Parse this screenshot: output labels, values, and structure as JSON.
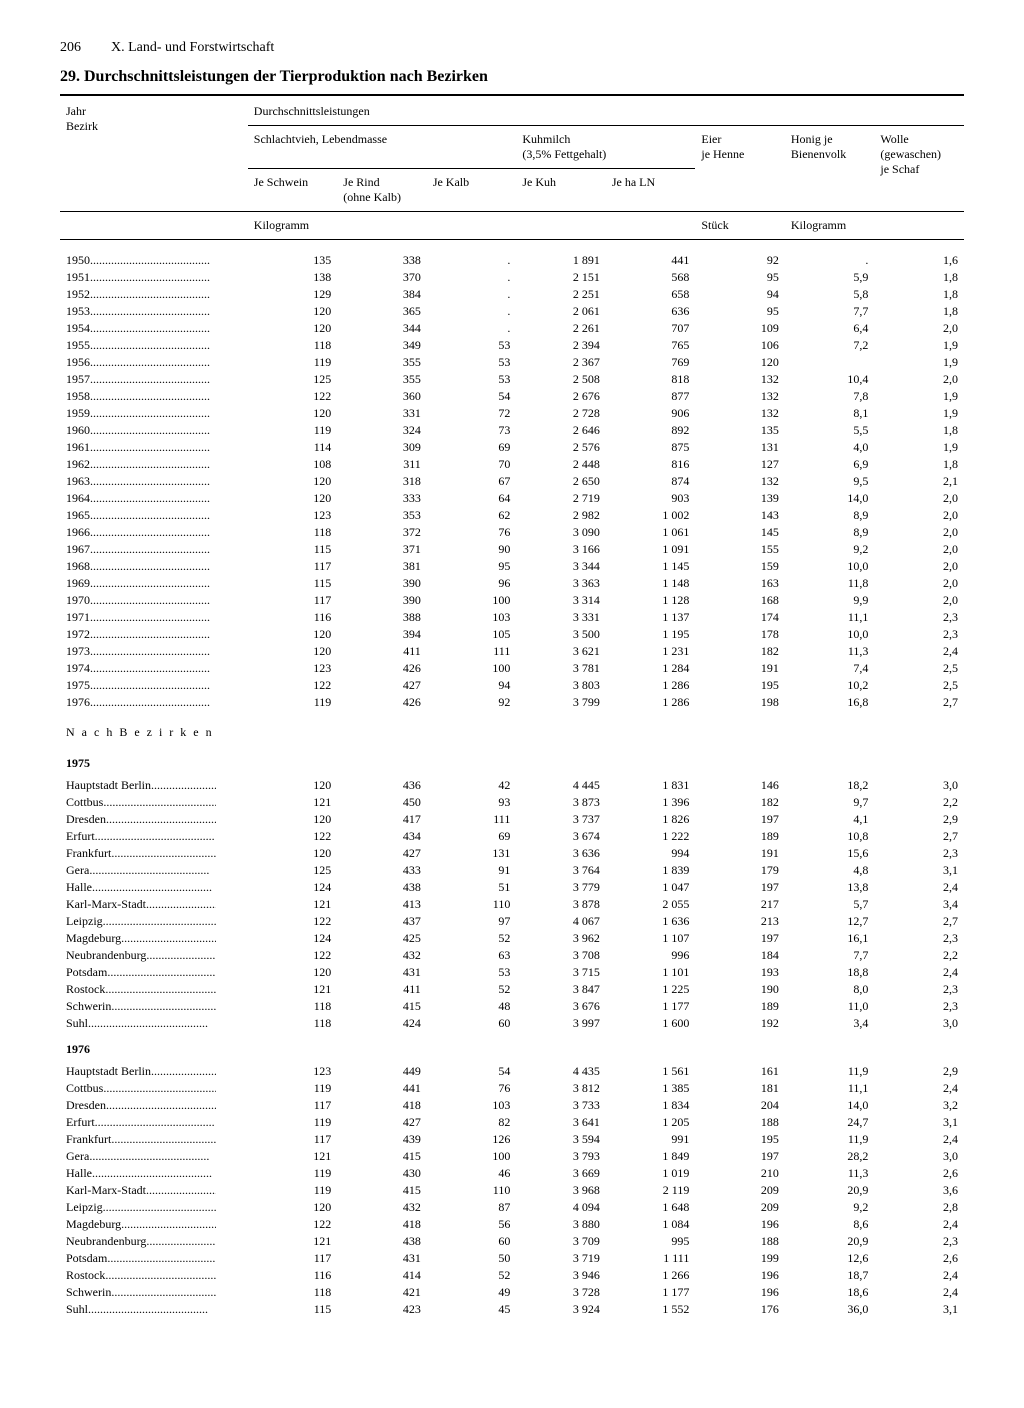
{
  "page_number": "206",
  "chapter": "X. Land- und Forstwirtschaft",
  "title": "29. Durchschnittsleistungen der Tierproduktion nach Bezirken",
  "head": {
    "group_left": "Jahr\nBezirk",
    "group_main": "Durchschnittsleistungen",
    "schlacht": "Schlachtvieh, Lebendmasse",
    "kuhmilch": "Kuhmilch\n(3,5% Fettgehalt)",
    "eier": "Eier\nje Henne",
    "honig": "Honig je\nBienenvolk",
    "wolle": "Wolle\n(gewaschen)\nje Schaf",
    "je_schwein": "Je Schwein",
    "je_rind": "Je Rind\n(ohne Kalb)",
    "je_kalb": "Je Kalb",
    "je_kuh": "Je Kuh",
    "je_ha": "Je ha LN",
    "unit_kg": "Kilogramm",
    "unit_stk": "Stück",
    "unit_kg2": "Kilogramm"
  },
  "section_label": "Nach Bezirken",
  "years": [
    [
      "1950",
      "135",
      "338",
      ".",
      "1 891",
      "441",
      "92",
      ".",
      "1,6"
    ],
    [
      "1951",
      "138",
      "370",
      ".",
      "2 151",
      "568",
      "95",
      "5,9",
      "1,8"
    ],
    [
      "1952",
      "129",
      "384",
      ".",
      "2 251",
      "658",
      "94",
      "5,8",
      "1,8"
    ],
    [
      "1953",
      "120",
      "365",
      ".",
      "2 061",
      "636",
      "95",
      "7,7",
      "1,8"
    ],
    [
      "1954",
      "120",
      "344",
      ".",
      "2 261",
      "707",
      "109",
      "6,4",
      "2,0"
    ],
    [
      "1955",
      "118",
      "349",
      "53",
      "2 394",
      "765",
      "106",
      "7,2",
      "1,9"
    ],
    [
      "1956",
      "119",
      "355",
      "53",
      "2 367",
      "769",
      "120",
      "",
      "1,9"
    ],
    [
      "1957",
      "125",
      "355",
      "53",
      "2 508",
      "818",
      "132",
      "10,4",
      "2,0"
    ],
    [
      "1958",
      "122",
      "360",
      "54",
      "2 676",
      "877",
      "132",
      "7,8",
      "1,9"
    ],
    [
      "1959",
      "120",
      "331",
      "72",
      "2 728",
      "906",
      "132",
      "8,1",
      "1,9"
    ],
    [
      "1960",
      "119",
      "324",
      "73",
      "2 646",
      "892",
      "135",
      "5,5",
      "1,8"
    ],
    [
      "1961",
      "114",
      "309",
      "69",
      "2 576",
      "875",
      "131",
      "4,0",
      "1,9"
    ],
    [
      "1962",
      "108",
      "311",
      "70",
      "2 448",
      "816",
      "127",
      "6,9",
      "1,8"
    ],
    [
      "1963",
      "120",
      "318",
      "67",
      "2 650",
      "874",
      "132",
      "9,5",
      "2,1"
    ],
    [
      "1964",
      "120",
      "333",
      "64",
      "2 719",
      "903",
      "139",
      "14,0",
      "2,0"
    ],
    [
      "1965",
      "123",
      "353",
      "62",
      "2 982",
      "1 002",
      "143",
      "8,9",
      "2,0"
    ],
    [
      "1966",
      "118",
      "372",
      "76",
      "3 090",
      "1 061",
      "145",
      "8,9",
      "2,0"
    ],
    [
      "1967",
      "115",
      "371",
      "90",
      "3 166",
      "1 091",
      "155",
      "9,2",
      "2,0"
    ],
    [
      "1968",
      "117",
      "381",
      "95",
      "3 344",
      "1 145",
      "159",
      "10,0",
      "2,0"
    ],
    [
      "1969",
      "115",
      "390",
      "96",
      "3 363",
      "1 148",
      "163",
      "11,8",
      "2,0"
    ],
    [
      "1970",
      "117",
      "390",
      "100",
      "3 314",
      "1 128",
      "168",
      "9,9",
      "2,0"
    ],
    [
      "1971",
      "116",
      "388",
      "103",
      "3 331",
      "1 137",
      "174",
      "11,1",
      "2,3"
    ],
    [
      "1972",
      "120",
      "394",
      "105",
      "3 500",
      "1 195",
      "178",
      "10,0",
      "2,3"
    ],
    [
      "1973",
      "120",
      "411",
      "111",
      "3 621",
      "1 231",
      "182",
      "11,3",
      "2,4"
    ],
    [
      "1974",
      "123",
      "426",
      "100",
      "3 781",
      "1 284",
      "191",
      "7,4",
      "2,5"
    ],
    [
      "1975",
      "122",
      "427",
      "94",
      "3 803",
      "1 286",
      "195",
      "10,2",
      "2,5"
    ],
    [
      "1976",
      "119",
      "426",
      "92",
      "3 799",
      "1 286",
      "198",
      "16,8",
      "2,7"
    ]
  ],
  "bezirk_years": [
    {
      "year": "1975",
      "rows": [
        [
          "Hauptstadt Berlin",
          "120",
          "436",
          "42",
          "4 445",
          "1 831",
          "146",
          "18,2",
          "3,0"
        ],
        [
          "Cottbus",
          "121",
          "450",
          "93",
          "3 873",
          "1 396",
          "182",
          "9,7",
          "2,2"
        ],
        [
          "Dresden",
          "120",
          "417",
          "111",
          "3 737",
          "1 826",
          "197",
          "4,1",
          "2,9"
        ],
        [
          "Erfurt",
          "122",
          "434",
          "69",
          "3 674",
          "1 222",
          "189",
          "10,8",
          "2,7"
        ],
        [
          "Frankfurt",
          "120",
          "427",
          "131",
          "3 636",
          "994",
          "191",
          "15,6",
          "2,3"
        ],
        [
          "Gera",
          "125",
          "433",
          "91",
          "3 764",
          "1 839",
          "179",
          "4,8",
          "3,1"
        ],
        [
          "Halle",
          "124",
          "438",
          "51",
          "3 779",
          "1 047",
          "197",
          "13,8",
          "2,4"
        ],
        [
          "Karl-Marx-Stadt",
          "121",
          "413",
          "110",
          "3 878",
          "2 055",
          "217",
          "5,7",
          "3,4"
        ],
        [
          "Leipzig",
          "122",
          "437",
          "97",
          "4 067",
          "1 636",
          "213",
          "12,7",
          "2,7"
        ],
        [
          "Magdeburg",
          "124",
          "425",
          "52",
          "3 962",
          "1 107",
          "197",
          "16,1",
          "2,3"
        ],
        [
          "Neubrandenburg",
          "122",
          "432",
          "63",
          "3 708",
          "996",
          "184",
          "7,7",
          "2,2"
        ],
        [
          "Potsdam",
          "120",
          "431",
          "53",
          "3 715",
          "1 101",
          "193",
          "18,8",
          "2,4"
        ],
        [
          "Rostock",
          "121",
          "411",
          "52",
          "3 847",
          "1 225",
          "190",
          "8,0",
          "2,3"
        ],
        [
          "Schwerin",
          "118",
          "415",
          "48",
          "3 676",
          "1 177",
          "189",
          "11,0",
          "2,3"
        ],
        [
          "Suhl",
          "118",
          "424",
          "60",
          "3 997",
          "1 600",
          "192",
          "3,4",
          "3,0"
        ]
      ]
    },
    {
      "year": "1976",
      "rows": [
        [
          "Hauptstadt Berlin",
          "123",
          "449",
          "54",
          "4 435",
          "1 561",
          "161",
          "11,9",
          "2,9"
        ],
        [
          "Cottbus",
          "119",
          "441",
          "76",
          "3 812",
          "1 385",
          "181",
          "11,1",
          "2,4"
        ],
        [
          "Dresden",
          "117",
          "418",
          "103",
          "3 733",
          "1 834",
          "204",
          "14,0",
          "3,2"
        ],
        [
          "Erfurt",
          "119",
          "427",
          "82",
          "3 641",
          "1 205",
          "188",
          "24,7",
          "3,1"
        ],
        [
          "Frankfurt",
          "117",
          "439",
          "126",
          "3 594",
          "991",
          "195",
          "11,9",
          "2,4"
        ],
        [
          "Gera",
          "121",
          "415",
          "100",
          "3 793",
          "1 849",
          "197",
          "28,2",
          "3,0"
        ],
        [
          "Halle",
          "119",
          "430",
          "46",
          "3 669",
          "1 019",
          "210",
          "11,3",
          "2,6"
        ],
        [
          "Karl-Marx-Stadt",
          "119",
          "415",
          "110",
          "3 968",
          "2 119",
          "209",
          "20,9",
          "3,6"
        ],
        [
          "Leipzig",
          "120",
          "432",
          "87",
          "4 094",
          "1 648",
          "209",
          "9,2",
          "2,8"
        ],
        [
          "Magdeburg",
          "122",
          "418",
          "56",
          "3 880",
          "1 084",
          "196",
          "8,6",
          "2,4"
        ],
        [
          "Neubrandenburg",
          "121",
          "438",
          "60",
          "3 709",
          "995",
          "188",
          "20,9",
          "2,3"
        ],
        [
          "Potsdam",
          "117",
          "431",
          "50",
          "3 719",
          "1 111",
          "199",
          "12,6",
          "2,6"
        ],
        [
          "Rostock",
          "116",
          "414",
          "52",
          "3 946",
          "1 266",
          "196",
          "18,7",
          "2,4"
        ],
        [
          "Schwerin",
          "118",
          "421",
          "49",
          "3 728",
          "1 177",
          "196",
          "18,6",
          "2,4"
        ],
        [
          "Suhl",
          "115",
          "423",
          "45",
          "3 924",
          "1 552",
          "176",
          "36,0",
          "3,1"
        ]
      ]
    }
  ]
}
